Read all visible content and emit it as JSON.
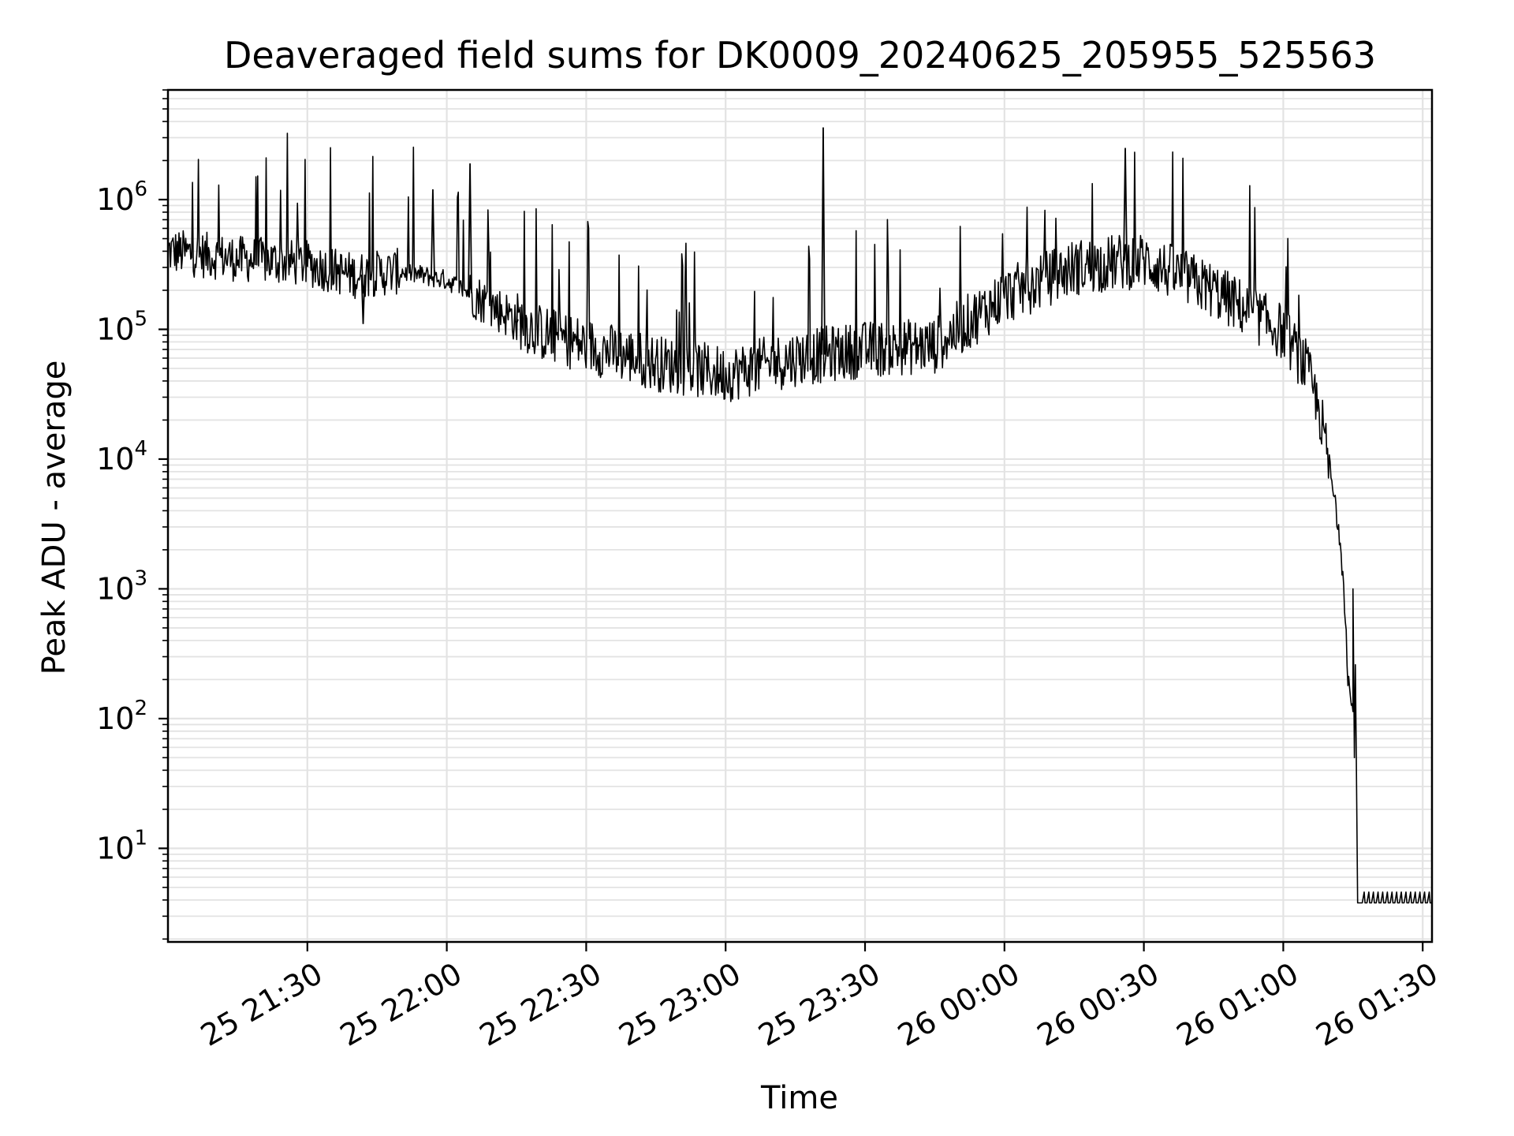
{
  "chart_data": {
    "type": "line",
    "title": "Deaveraged field sums for DK0009_20240625_205955_525563",
    "xlabel": "Time",
    "ylabel": "Peak ADU - average",
    "yscale": "log",
    "ylim": [
      1.9,
      7000000
    ],
    "xlim": [
      "25 21:00",
      "26 01:32"
    ],
    "grid": true,
    "line_color": "#000000",
    "grid_color": "#e3e3e3",
    "x_ticks": [
      "25 21:30",
      "25 22:00",
      "25 22:30",
      "25 23:00",
      "25 23:30",
      "26 00:00",
      "26 00:30",
      "26 01:00",
      "26 01:30"
    ],
    "y_ticks": [
      {
        "base": "10",
        "exp": "1",
        "value": 10
      },
      {
        "base": "10",
        "exp": "2",
        "value": 100
      },
      {
        "base": "10",
        "exp": "3",
        "value": 1000
      },
      {
        "base": "10",
        "exp": "4",
        "value": 10000
      },
      {
        "base": "10",
        "exp": "5",
        "value": 100000
      },
      {
        "base": "10",
        "exp": "6",
        "value": 1000000
      }
    ],
    "series": [
      {
        "x": [
          "25 21:00",
          "25 21:15",
          "25 21:30",
          "25 21:40",
          "25 21:50",
          "25 22:00",
          "25 22:10",
          "25 22:20",
          "25 22:30",
          "25 22:45",
          "25 23:00",
          "25 23:15",
          "25 23:30",
          "25 23:45",
          "26 00:00",
          "26 00:15",
          "26 00:25",
          "26 00:30",
          "26 00:45",
          "26 01:00",
          "26 01:05",
          "26 01:08",
          "26 01:10",
          "26 01:12",
          "26 01:13",
          "26 01:14",
          "26 01:15",
          "26 01:16",
          "26 01:32"
        ],
        "y": [
          400000,
          350000,
          320000,
          260000,
          280000,
          240000,
          150000,
          95000,
          75000,
          55000,
          45000,
          60000,
          70000,
          75000,
          180000,
          300000,
          330000,
          340000,
          200000,
          95000,
          50000,
          22000,
          8000,
          3000,
          1200,
          200,
          100,
          4,
          4
        ]
      }
    ],
    "spikes": [
      {
        "x": "25 22:05",
        "y": 1900000
      },
      {
        "x": "25 23:21",
        "y": 3600000
      },
      {
        "x": "26 00:26",
        "y": 2500000
      },
      {
        "x": "25 22:15",
        "y": 110000
      },
      {
        "x": "25 21:42",
        "y": 110000
      },
      {
        "x": "25 21:57",
        "y": 1200000
      }
    ]
  }
}
